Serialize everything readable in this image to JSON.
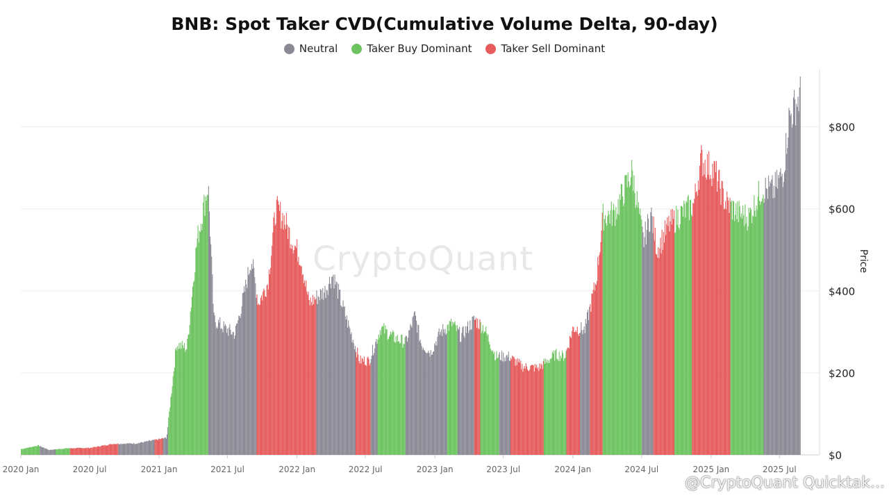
{
  "title": "BNB: Spot Taker CVD(Cumulative Volume Delta, 90-day)",
  "legend": [
    {
      "label": "Neutral",
      "color": "#8a8a96"
    },
    {
      "label": "Taker Buy Dominant",
      "color": "#6cc35f"
    },
    {
      "label": "Taker Sell Dominant",
      "color": "#e65b5b"
    }
  ],
  "watermark": "CryptoQuant",
  "credit": "@CryptoQuant Quicktak...",
  "chart_data": {
    "type": "bar",
    "title": "BNB: Spot Taker CVD(Cumulative Volume Delta, 90-day)",
    "ylabel": "Price",
    "ylim": [
      0,
      940
    ],
    "yticks": [
      "$0",
      "$200",
      "$400",
      "$600",
      "$800"
    ],
    "ytick_values": [
      0,
      200,
      400,
      600,
      800
    ],
    "xlim": [
      "2020-01-01",
      "2025-10-15"
    ],
    "xticks": [
      "2020 Jan",
      "2020 Jul",
      "2021 Jan",
      "2021 Jul",
      "2022 Jan",
      "2022 Jul",
      "2023 Jan",
      "2023 Jul",
      "2024 Jan",
      "2024 Jul",
      "2025 Jan",
      "2025 Jul"
    ],
    "xtick_dates": [
      "2020-01-01",
      "2020-07-01",
      "2021-01-01",
      "2021-07-01",
      "2022-01-01",
      "2022-07-01",
      "2023-01-01",
      "2023-07-01",
      "2024-01-01",
      "2024-07-01",
      "2025-01-01",
      "2025-07-01"
    ],
    "grid": true,
    "series": [
      {
        "name": "Neutral",
        "color": "#8a8a96"
      },
      {
        "name": "Taker Buy Dominant",
        "color": "#6cc35f"
      },
      {
        "name": "Taker Sell Dominant",
        "color": "#e65b5b"
      }
    ],
    "price_points": [
      [
        "2020-01-01",
        14
      ],
      [
        "2020-02-15",
        23
      ],
      [
        "2020-03-15",
        12
      ],
      [
        "2020-05-01",
        16
      ],
      [
        "2020-07-01",
        17
      ],
      [
        "2020-09-01",
        27
      ],
      [
        "2020-11-01",
        28
      ],
      [
        "2020-12-31",
        38
      ],
      [
        "2021-01-20",
        42
      ],
      [
        "2021-02-15",
        270
      ],
      [
        "2021-03-15",
        260
      ],
      [
        "2021-04-10",
        520
      ],
      [
        "2021-05-10",
        660
      ],
      [
        "2021-05-25",
        330
      ],
      [
        "2021-06-20",
        310
      ],
      [
        "2021-07-20",
        295
      ],
      [
        "2021-08-15",
        400
      ],
      [
        "2021-09-01",
        480
      ],
      [
        "2021-09-20",
        370
      ],
      [
        "2021-10-15",
        420
      ],
      [
        "2021-11-05",
        600
      ],
      [
        "2021-11-25",
        580
      ],
      [
        "2021-12-15",
        530
      ],
      [
        "2022-01-10",
        480
      ],
      [
        "2022-02-01",
        370
      ],
      [
        "2022-03-15",
        400
      ],
      [
        "2022-04-05",
        440
      ],
      [
        "2022-05-15",
        320
      ],
      [
        "2022-06-15",
        230
      ],
      [
        "2022-07-10",
        230
      ],
      [
        "2022-08-10",
        310
      ],
      [
        "2022-09-15",
        285
      ],
      [
        "2022-10-15",
        275
      ],
      [
        "2022-11-08",
        340
      ],
      [
        "2022-11-25",
        270
      ],
      [
        "2022-12-20",
        250
      ],
      [
        "2023-01-15",
        300
      ],
      [
        "2023-02-15",
        320
      ],
      [
        "2023-03-10",
        290
      ],
      [
        "2023-04-15",
        330
      ],
      [
        "2023-05-10",
        310
      ],
      [
        "2023-06-10",
        240
      ],
      [
        "2023-07-15",
        240
      ],
      [
        "2023-08-20",
        215
      ],
      [
        "2023-10-01",
        212
      ],
      [
        "2023-11-15",
        245
      ],
      [
        "2023-12-10",
        240
      ],
      [
        "2024-01-01",
        310
      ],
      [
        "2024-02-01",
        305
      ],
      [
        "2024-03-01",
        420
      ],
      [
        "2024-03-20",
        580
      ],
      [
        "2024-04-20",
        590
      ],
      [
        "2024-06-05",
        690
      ],
      [
        "2024-07-05",
        520
      ],
      [
        "2024-07-25",
        590
      ],
      [
        "2024-08-10",
        500
      ],
      [
        "2024-09-10",
        560
      ],
      [
        "2024-10-15",
        590
      ],
      [
        "2024-11-15",
        610
      ],
      [
        "2024-12-05",
        720
      ],
      [
        "2025-01-10",
        690
      ],
      [
        "2025-02-05",
        620
      ],
      [
        "2025-03-10",
        590
      ],
      [
        "2025-04-10",
        580
      ],
      [
        "2025-05-15",
        650
      ],
      [
        "2025-06-15",
        645
      ],
      [
        "2025-07-10",
        690
      ],
      [
        "2025-07-25",
        820
      ],
      [
        "2025-08-10",
        850
      ],
      [
        "2025-08-25",
        880
      ]
    ],
    "regimes": [
      [
        "2020-01-01",
        "2020-02-20",
        "Taker Buy Dominant"
      ],
      [
        "2020-02-20",
        "2020-04-01",
        "Neutral"
      ],
      [
        "2020-04-01",
        "2020-05-10",
        "Taker Buy Dominant"
      ],
      [
        "2020-05-10",
        "2020-09-15",
        "Taker Sell Dominant"
      ],
      [
        "2020-09-15",
        "2020-12-20",
        "Neutral"
      ],
      [
        "2020-12-20",
        "2021-01-10",
        "Taker Sell Dominant"
      ],
      [
        "2021-01-10",
        "2021-01-25",
        "Neutral"
      ],
      [
        "2021-01-25",
        "2021-05-10",
        "Taker Buy Dominant"
      ],
      [
        "2021-05-10",
        "2021-09-15",
        "Neutral"
      ],
      [
        "2021-09-15",
        "2022-02-20",
        "Taker Sell Dominant"
      ],
      [
        "2022-02-20",
        "2022-06-05",
        "Neutral"
      ],
      [
        "2022-06-05",
        "2022-07-15",
        "Taker Sell Dominant"
      ],
      [
        "2022-07-15",
        "2022-08-01",
        "Neutral"
      ],
      [
        "2022-08-01",
        "2022-10-15",
        "Taker Buy Dominant"
      ],
      [
        "2022-10-15",
        "2023-02-01",
        "Neutral"
      ],
      [
        "2023-02-01",
        "2023-03-01",
        "Taker Buy Dominant"
      ],
      [
        "2023-03-01",
        "2023-04-15",
        "Neutral"
      ],
      [
        "2023-04-15",
        "2023-05-01",
        "Taker Sell Dominant"
      ],
      [
        "2023-05-01",
        "2023-06-20",
        "Taker Buy Dominant"
      ],
      [
        "2023-06-20",
        "2023-07-20",
        "Neutral"
      ],
      [
        "2023-07-20",
        "2023-10-15",
        "Taker Sell Dominant"
      ],
      [
        "2023-10-15",
        "2023-12-15",
        "Taker Buy Dominant"
      ],
      [
        "2023-12-15",
        "2024-01-20",
        "Taker Sell Dominant"
      ],
      [
        "2024-01-20",
        "2024-02-15",
        "Neutral"
      ],
      [
        "2024-02-15",
        "2024-03-20",
        "Taker Sell Dominant"
      ],
      [
        "2024-03-20",
        "2024-07-01",
        "Taker Buy Dominant"
      ],
      [
        "2024-07-01",
        "2024-08-01",
        "Neutral"
      ],
      [
        "2024-08-01",
        "2024-09-25",
        "Taker Sell Dominant"
      ],
      [
        "2024-09-25",
        "2024-11-10",
        "Taker Buy Dominant"
      ],
      [
        "2024-11-10",
        "2025-02-20",
        "Taker Sell Dominant"
      ],
      [
        "2025-02-20",
        "2025-05-20",
        "Taker Buy Dominant"
      ],
      [
        "2025-05-20",
        "2025-10-01",
        "Neutral"
      ]
    ]
  }
}
